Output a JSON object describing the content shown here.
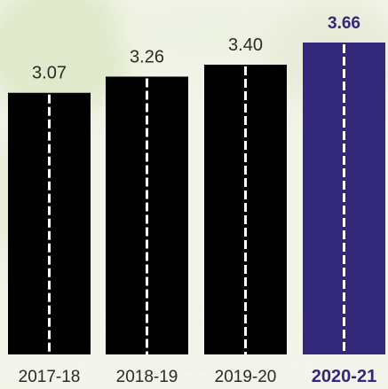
{
  "chart_data": {
    "type": "bar",
    "categories": [
      "2017-18",
      "2018-19",
      "2019-20",
      "2020-21"
    ],
    "values": [
      3.07,
      3.26,
      3.4,
      3.66
    ],
    "value_labels": [
      "3.07",
      "3.26",
      "3.40",
      "3.66"
    ],
    "highlighted_category": "2020-21",
    "ylim": [
      0,
      3.66
    ],
    "grid": false,
    "colors": {
      "bar": "#000000",
      "highlight_bar": "#34287b",
      "dash_line": "#ffffff",
      "value_label": "#2a2a2a",
      "highlight_value_label": "#34287b",
      "category_label": "#2a2a2a",
      "highlight_category_label": "#34287b"
    }
  }
}
